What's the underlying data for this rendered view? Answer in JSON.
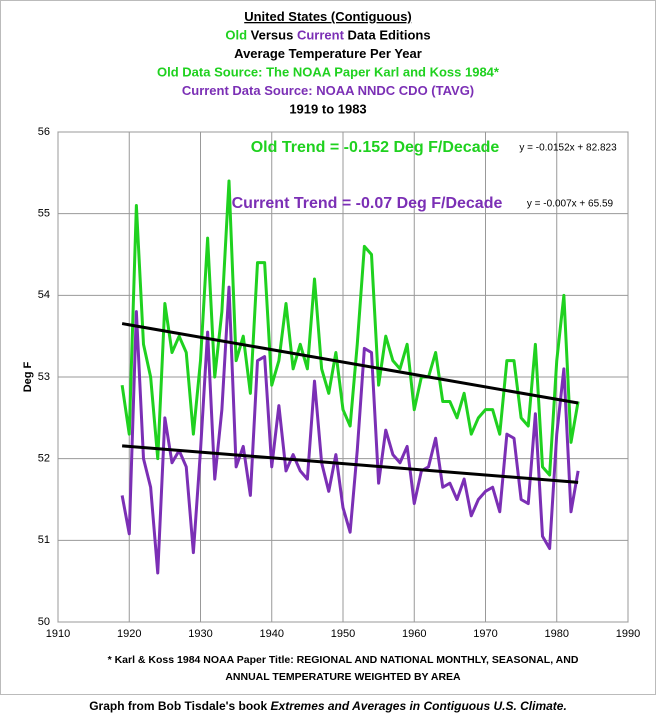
{
  "chart_data": {
    "type": "line",
    "title_lines": [
      [
        {
          "text": "United States (Contiguous)",
          "color": "#000000"
        }
      ],
      [
        {
          "text": "Old",
          "color": "#1fd11f"
        },
        {
          "text": "Versus",
          "color": "#000000"
        },
        {
          "text": "Current",
          "color": "#7b2fb5"
        },
        {
          "text": "Data Editions",
          "color": "#000000"
        }
      ],
      [
        {
          "text": "Average Temperature Per Year",
          "color": "#000000"
        }
      ],
      [
        {
          "text": "Old Data Source: The NOAA Paper Karl and Koss 1984*",
          "color": "#1fd11f"
        }
      ],
      [
        {
          "text": "Current Data Source: NOAA NNDC CDO (TAVG)",
          "color": "#7b2fb5"
        }
      ],
      [
        {
          "text": "1919 to 1983",
          "color": "#000000"
        }
      ]
    ],
    "y_label": "Deg F",
    "x": [
      1919,
      1920,
      1921,
      1922,
      1923,
      1924,
      1925,
      1926,
      1927,
      1928,
      1929,
      1930,
      1931,
      1932,
      1933,
      1934,
      1935,
      1936,
      1937,
      1938,
      1939,
      1940,
      1941,
      1942,
      1943,
      1944,
      1945,
      1946,
      1947,
      1948,
      1949,
      1950,
      1951,
      1952,
      1953,
      1954,
      1955,
      1956,
      1957,
      1958,
      1959,
      1960,
      1961,
      1962,
      1963,
      1964,
      1965,
      1966,
      1967,
      1968,
      1969,
      1970,
      1971,
      1972,
      1973,
      1974,
      1975,
      1976,
      1977,
      1978,
      1979,
      1980,
      1981,
      1982,
      1983
    ],
    "series": [
      {
        "color": "#1fd11f",
        "values": [
          52.9,
          52.3,
          55.1,
          53.4,
          53.0,
          52.0,
          53.9,
          53.3,
          53.5,
          53.3,
          52.3,
          53.2,
          54.7,
          53.0,
          53.8,
          55.4,
          53.2,
          53.5,
          52.8,
          54.4,
          54.4,
          52.9,
          53.2,
          53.9,
          53.1,
          53.4,
          53.1,
          54.2,
          53.1,
          52.8,
          53.3,
          52.6,
          52.4,
          53.4,
          54.6,
          54.5,
          52.9,
          53.5,
          53.2,
          53.1,
          53.4,
          52.6,
          53.0,
          53.0,
          53.3,
          52.7,
          52.7,
          52.5,
          52.8,
          52.3,
          52.5,
          52.6,
          52.6,
          52.3,
          53.2,
          53.2,
          52.5,
          52.4,
          53.4,
          51.9,
          51.8,
          53.2,
          54.0,
          52.2,
          52.7
        ]
      },
      {
        "color": "#7b2fb5",
        "values": [
          51.55,
          51.08,
          53.8,
          52.0,
          51.65,
          50.6,
          52.5,
          51.95,
          52.1,
          51.9,
          50.85,
          52.1,
          53.55,
          51.75,
          52.6,
          54.1,
          51.9,
          52.15,
          51.55,
          53.2,
          53.25,
          51.9,
          52.65,
          51.85,
          52.05,
          51.85,
          51.75,
          52.95,
          51.95,
          51.6,
          52.05,
          51.4,
          51.1,
          52.1,
          53.35,
          53.3,
          51.7,
          52.35,
          52.05,
          51.95,
          52.15,
          51.45,
          51.85,
          51.9,
          52.25,
          51.65,
          51.7,
          51.5,
          51.75,
          51.3,
          51.5,
          51.6,
          51.65,
          51.35,
          52.3,
          52.25,
          51.5,
          51.45,
          52.55,
          51.05,
          50.9,
          52.3,
          53.1,
          51.35,
          51.85
        ]
      }
    ],
    "trends": [
      {
        "label": "Old Trend = -0.152 Deg F/Decade",
        "label_color": "#1fd11f",
        "equation": "y = -0.0152x + 82.823",
        "slope": -0.0152,
        "intercept": 82.823,
        "color": "#000000"
      },
      {
        "label": "Current Trend = -0.07 Deg F/Decade",
        "label_color": "#7b2fb5",
        "equation": "y = -0.007x + 65.59",
        "slope": -0.007,
        "intercept": 65.59,
        "color": "#000000"
      }
    ],
    "xlim": [
      1910,
      1990
    ],
    "xticks": [
      1910,
      1920,
      1930,
      1940,
      1950,
      1960,
      1970,
      1980,
      1990
    ],
    "ylim": [
      50,
      56
    ],
    "yticks": [
      50,
      51,
      52,
      53,
      54,
      55,
      56
    ],
    "grid": true,
    "footnote": [
      "* Karl & Koss 1984 NOAA Paper Title: REGIONAL AND NATIONAL MONTHLY, SEASONAL, AND",
      "ANNUAL TEMPERATURE  WEIGHTED  BY AREA"
    ],
    "credit": [
      {
        "text": "Graph from Bob Tisdale's book ",
        "italic": false
      },
      {
        "text": "Extremes and Averages in Contiguous U.S. Climate.",
        "italic": true
      }
    ]
  }
}
